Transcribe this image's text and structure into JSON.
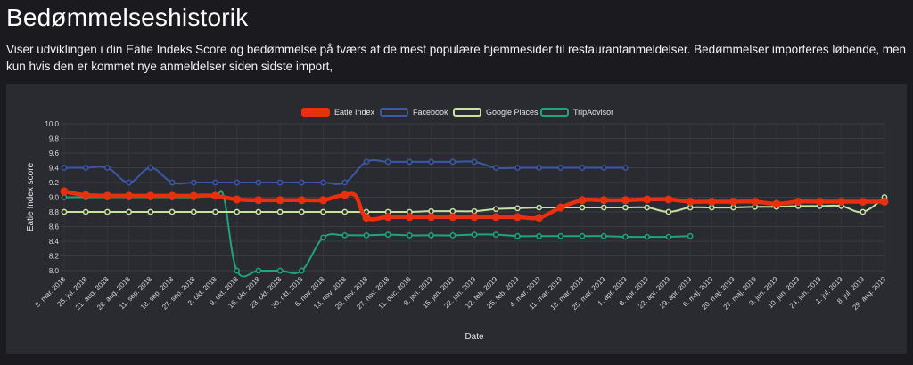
{
  "header": {
    "title": "Bedømmelseshistorik",
    "description": "Viser udviklingen i din Eatie Indeks Score og bedømmelse på tværs af de mest populære hjemmesider til restaurantanmeldelser. Bedømmelser importeres løbende, men kun hvis den er kommet nye anmeldelser siden sidste import,"
  },
  "chart_data": {
    "type": "line",
    "xlabel": "Date",
    "ylabel": "Eatie Index score",
    "ylim": [
      8.0,
      10.0
    ],
    "yticks": [
      "8.0",
      "8.2",
      "8.4",
      "8.6",
      "8.8",
      "9.0",
      "9.2",
      "9.4",
      "9.6",
      "9.8",
      "10.0"
    ],
    "grid": true,
    "legend_position": "top",
    "categories": [
      "8. mar. 2018",
      "25. jul. 2018",
      "21. aug. 2018",
      "28. aug. 2018",
      "11. sep. 2018",
      "18. sep. 2018",
      "27. sep. 2018",
      "2. okt. 2018",
      "9. okt. 2018",
      "16. okt. 2018",
      "23. okt. 2018",
      "30. okt. 2018",
      "6. nov. 2018",
      "13. nov. 2018",
      "20. nov. 2018",
      "27. nov. 2018",
      "11. dec. 2018",
      "8. jan. 2019",
      "15. jan. 2019",
      "22. jan. 2019",
      "12. feb. 2019",
      "25. feb. 2019",
      "4. mar. 2019",
      "11. mar. 2019",
      "18. mar. 2019",
      "25. mar. 2019",
      "1. apr. 2019",
      "8. apr. 2019",
      "22. apr. 2019",
      "29. apr. 2019",
      "6. maj. 2019",
      "20. maj. 2019",
      "27. maj. 2019",
      "3. jun. 2019",
      "10. jun. 2019",
      "24. jun. 2019",
      "1. jul. 2019",
      "8. jul. 2019",
      "29. aug. 2019"
    ],
    "series": [
      {
        "name": "Eatie Index",
        "color": "#e8300f",
        "x": [
          0,
          0.5,
          1,
          2,
          3,
          4,
          5,
          6,
          7,
          8,
          9,
          10,
          11,
          12,
          12.5,
          13,
          13.5,
          14,
          15,
          16,
          17,
          18,
          19,
          20,
          21,
          22,
          23,
          24,
          25,
          26,
          27,
          28,
          29,
          30,
          31,
          32,
          33,
          34,
          35,
          36,
          37,
          38
        ],
        "values": [
          9.08,
          9.05,
          9.03,
          9.02,
          9.02,
          9.02,
          9.02,
          9.02,
          9.02,
          8.97,
          8.96,
          8.96,
          8.96,
          8.96,
          9.0,
          9.03,
          9.02,
          8.72,
          8.73,
          8.73,
          8.73,
          8.73,
          8.73,
          8.73,
          8.73,
          8.72,
          8.86,
          8.96,
          8.96,
          8.96,
          8.97,
          8.97,
          8.94,
          8.94,
          8.94,
          8.94,
          8.91,
          8.94,
          8.94,
          8.94,
          8.94,
          8.94
        ]
      },
      {
        "name": "Facebook",
        "color": "#3c58a8",
        "x": [
          0,
          1,
          2,
          3,
          4,
          5,
          6,
          7,
          8,
          9,
          10,
          11,
          12,
          13,
          14,
          15,
          16,
          17,
          18,
          19,
          20,
          21,
          22,
          23,
          24,
          25,
          26
        ],
        "values": [
          9.4,
          9.4,
          9.4,
          9.2,
          9.4,
          9.2,
          9.2,
          9.2,
          9.2,
          9.2,
          9.2,
          9.2,
          9.2,
          9.2,
          9.48,
          9.48,
          9.48,
          9.48,
          9.48,
          9.48,
          9.4,
          9.4,
          9.4,
          9.4,
          9.4,
          9.4,
          9.4
        ]
      },
      {
        "name": "Google Places",
        "color": "#c4e2a2",
        "x": [
          0,
          1,
          2,
          3,
          4,
          5,
          6,
          7,
          8,
          9,
          10,
          11,
          12,
          13,
          14,
          15,
          16,
          17,
          18,
          19,
          20,
          21,
          22,
          23,
          24,
          25,
          26,
          27,
          28,
          29,
          30,
          31,
          32,
          33,
          34,
          35,
          36,
          37,
          38
        ],
        "values": [
          8.8,
          8.8,
          8.8,
          8.8,
          8.8,
          8.8,
          8.8,
          8.8,
          8.8,
          8.8,
          8.8,
          8.8,
          8.8,
          8.8,
          8.8,
          8.8,
          8.8,
          8.81,
          8.81,
          8.81,
          8.84,
          8.85,
          8.86,
          8.86,
          8.86,
          8.86,
          8.86,
          8.86,
          8.8,
          8.86,
          8.86,
          8.86,
          8.87,
          8.87,
          8.88,
          8.88,
          8.88,
          8.8,
          9.0
        ]
      },
      {
        "name": "TripAdvisor",
        "color": "#1fa57a",
        "x": [
          0,
          1,
          2,
          3,
          4,
          5,
          6,
          7,
          7.4,
          8,
          9,
          10,
          11,
          12,
          13,
          14,
          15,
          16,
          17,
          18,
          19,
          20,
          21,
          22,
          23,
          24,
          25,
          26,
          27,
          28,
          29
        ],
        "values": [
          9.0,
          9.0,
          9.0,
          9.0,
          9.0,
          9.0,
          9.0,
          9.02,
          9.0,
          8.0,
          8.0,
          8.0,
          8.0,
          8.45,
          8.48,
          8.48,
          8.49,
          8.48,
          8.48,
          8.48,
          8.49,
          8.49,
          8.47,
          8.47,
          8.47,
          8.47,
          8.47,
          8.46,
          8.46,
          8.46,
          8.47
        ]
      }
    ]
  }
}
